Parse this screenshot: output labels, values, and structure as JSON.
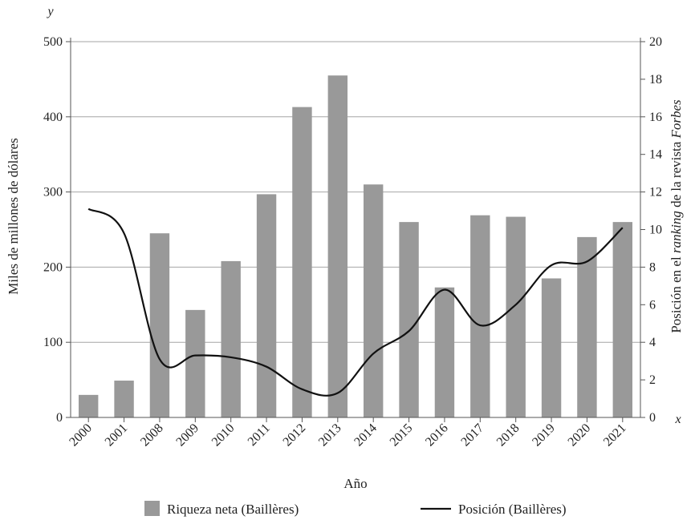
{
  "chart_data": {
    "type": "bar",
    "categories": [
      "2000",
      "2001",
      "2008",
      "2009",
      "2010",
      "2011",
      "2012",
      "2013",
      "2014",
      "2015",
      "2016",
      "2017",
      "2018",
      "2019",
      "2020",
      "2021"
    ],
    "series": [
      {
        "name": "Riqueza neta (Baillères)",
        "type": "bar",
        "axis": "left",
        "values": [
          30,
          49,
          245,
          143,
          208,
          297,
          413,
          455,
          310,
          260,
          173,
          269,
          267,
          185,
          240,
          260
        ]
      },
      {
        "name": "Posición (Baillères)",
        "type": "line",
        "axis": "right",
        "values": [
          11.1,
          9.8,
          3.1,
          3.3,
          3.2,
          2.7,
          1.5,
          1.3,
          3.4,
          4.6,
          6.8,
          4.9,
          6.0,
          8.1,
          8.3,
          10.1
        ]
      }
    ],
    "xlabel": "Año",
    "ylabel": "Miles de millones de dólares",
    "y2label": "Posición en el ranking de la revista Forbes",
    "y2label_parts": [
      "Posición en el ",
      "ranking",
      " de la revista ",
      "Forbes"
    ],
    "y_corner": "y",
    "x_corner": "x",
    "ylim": [
      0,
      500
    ],
    "yticks": [
      0,
      100,
      200,
      300,
      400,
      500
    ],
    "y2lim": [
      0,
      20
    ],
    "y2ticks": [
      0,
      2,
      4,
      6,
      8,
      10,
      12,
      14,
      16,
      18,
      20
    ],
    "grid": true,
    "legend_position": "bottom",
    "colors": {
      "bar": "#999999",
      "line": "#111111",
      "grid": "#a6a6a6",
      "axis": "#555555"
    }
  }
}
